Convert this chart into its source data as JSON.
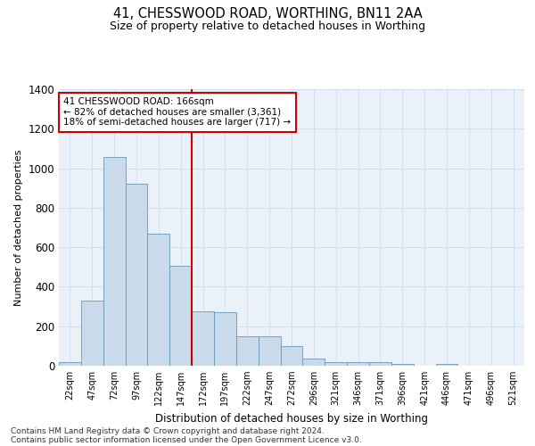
{
  "title": "41, CHESSWOOD ROAD, WORTHING, BN11 2AA",
  "subtitle": "Size of property relative to detached houses in Worthing",
  "xlabel": "Distribution of detached houses by size in Worthing",
  "ylabel": "Number of detached properties",
  "footer_line1": "Contains HM Land Registry data © Crown copyright and database right 2024.",
  "footer_line2": "Contains public sector information licensed under the Open Government Licence v3.0.",
  "bar_color": "#c9daea",
  "bar_edge_color": "#6699bb",
  "grid_color": "#d0e0ee",
  "background_color": "#eaf1f8",
  "vline_color": "#cc0000",
  "vline_index": 5.5,
  "annotation_text": "41 CHESSWOOD ROAD: 166sqm\n← 82% of detached houses are smaller (3,361)\n18% of semi-detached houses are larger (717) →",
  "annotation_box_color": "#cc0000",
  "categories": [
    "22sqm",
    "47sqm",
    "72sqm",
    "97sqm",
    "122sqm",
    "147sqm",
    "172sqm",
    "197sqm",
    "222sqm",
    "247sqm",
    "272sqm",
    "296sqm",
    "321sqm",
    "346sqm",
    "371sqm",
    "396sqm",
    "421sqm",
    "446sqm",
    "471sqm",
    "496sqm",
    "521sqm"
  ],
  "values": [
    20,
    330,
    1055,
    920,
    670,
    505,
    275,
    270,
    150,
    150,
    100,
    35,
    20,
    18,
    18,
    10,
    0,
    8,
    0,
    0,
    0
  ],
  "ylim": [
    0,
    1400
  ],
  "yticks": [
    0,
    200,
    400,
    600,
    800,
    1000,
    1200,
    1400
  ]
}
